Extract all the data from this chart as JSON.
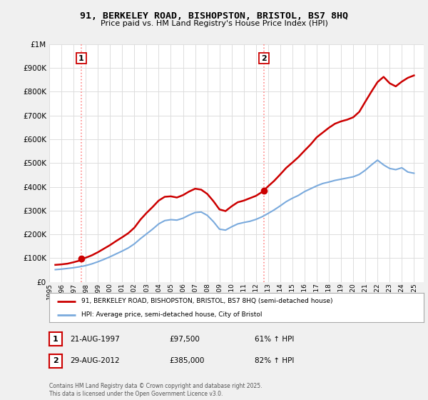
{
  "title_line1": "91, BERKELEY ROAD, BISHOPSTON, BRISTOL, BS7 8HQ",
  "title_line2": "Price paid vs. HM Land Registry's House Price Index (HPI)",
  "ylim": [
    0,
    1000000
  ],
  "yticks": [
    0,
    100000,
    200000,
    300000,
    400000,
    500000,
    600000,
    700000,
    800000,
    900000,
    1000000
  ],
  "ytick_labels": [
    "£0",
    "£100K",
    "£200K",
    "£300K",
    "£400K",
    "£500K",
    "£600K",
    "£700K",
    "£800K",
    "£900K",
    "£1M"
  ],
  "sale1_year": 1997.64,
  "sale1_price": 97500,
  "sale2_year": 2012.66,
  "sale2_price": 385000,
  "sale1_label": "1",
  "sale2_label": "2",
  "vline_color": "#ff8888",
  "red_line_color": "#cc0000",
  "blue_line_color": "#7aaadd",
  "sale_dot_color": "#cc0000",
  "legend_label_red": "91, BERKELEY ROAD, BISHOPSTON, BRISTOL, BS7 8HQ (semi-detached house)",
  "legend_label_blue": "HPI: Average price, semi-detached house, City of Bristol",
  "annotation1_date": "21-AUG-1997",
  "annotation1_price": "£97,500",
  "annotation1_hpi": "61% ↑ HPI",
  "annotation2_date": "29-AUG-2012",
  "annotation2_price": "£385,000",
  "annotation2_hpi": "82% ↑ HPI",
  "footer": "Contains HM Land Registry data © Crown copyright and database right 2025.\nThis data is licensed under the Open Government Licence v3.0.",
  "background_color": "#f0f0f0",
  "plot_bg_color": "#ffffff",
  "grid_color": "#dddddd",
  "red_years": [
    1995.5,
    1996.0,
    1996.5,
    1997.0,
    1997.5,
    1997.64,
    1998.0,
    1998.5,
    1999.0,
    1999.5,
    2000.0,
    2000.5,
    2001.0,
    2001.5,
    2002.0,
    2002.5,
    2003.0,
    2003.5,
    2004.0,
    2004.5,
    2005.0,
    2005.5,
    2006.0,
    2006.5,
    2007.0,
    2007.5,
    2008.0,
    2008.5,
    2009.0,
    2009.5,
    2010.0,
    2010.5,
    2011.0,
    2011.5,
    2012.0,
    2012.5,
    2012.66,
    2013.0,
    2013.5,
    2014.0,
    2014.5,
    2015.0,
    2015.5,
    2016.0,
    2016.5,
    2017.0,
    2017.5,
    2018.0,
    2018.5,
    2019.0,
    2019.5,
    2020.0,
    2020.5,
    2021.0,
    2021.5,
    2022.0,
    2022.5,
    2023.0,
    2023.5,
    2024.0,
    2024.5,
    2025.0
  ],
  "red_vals": [
    72000,
    74000,
    77000,
    83000,
    90000,
    97500,
    102000,
    112000,
    125000,
    140000,
    155000,
    172000,
    188000,
    205000,
    228000,
    262000,
    290000,
    315000,
    342000,
    358000,
    360000,
    355000,
    365000,
    380000,
    392000,
    388000,
    370000,
    340000,
    305000,
    298000,
    318000,
    335000,
    342000,
    352000,
    362000,
    378000,
    385000,
    402000,
    425000,
    452000,
    480000,
    502000,
    525000,
    552000,
    578000,
    608000,
    628000,
    648000,
    665000,
    675000,
    682000,
    692000,
    715000,
    758000,
    800000,
    840000,
    862000,
    835000,
    822000,
    842000,
    858000,
    868000
  ],
  "blue_years": [
    1995.5,
    1996.0,
    1996.5,
    1997.0,
    1997.5,
    1998.0,
    1998.5,
    1999.0,
    1999.5,
    2000.0,
    2000.5,
    2001.0,
    2001.5,
    2002.0,
    2002.5,
    2003.0,
    2003.5,
    2004.0,
    2004.5,
    2005.0,
    2005.5,
    2006.0,
    2006.5,
    2007.0,
    2007.5,
    2008.0,
    2008.5,
    2009.0,
    2009.5,
    2010.0,
    2010.5,
    2011.0,
    2011.5,
    2012.0,
    2012.5,
    2013.0,
    2013.5,
    2014.0,
    2014.5,
    2015.0,
    2015.5,
    2016.0,
    2016.5,
    2017.0,
    2017.5,
    2018.0,
    2018.5,
    2019.0,
    2019.5,
    2020.0,
    2020.5,
    2021.0,
    2021.5,
    2022.0,
    2022.5,
    2023.0,
    2023.5,
    2024.0,
    2024.5,
    2025.0
  ],
  "blue_vals": [
    52000,
    54000,
    57000,
    60000,
    64000,
    69000,
    76000,
    85000,
    95000,
    106000,
    118000,
    130000,
    143000,
    160000,
    182000,
    202000,
    222000,
    244000,
    258000,
    262000,
    260000,
    268000,
    281000,
    292000,
    294000,
    280000,
    254000,
    222000,
    218000,
    232000,
    244000,
    250000,
    255000,
    263000,
    274000,
    288000,
    303000,
    320000,
    338000,
    352000,
    364000,
    380000,
    392000,
    404000,
    414000,
    420000,
    427000,
    432000,
    437000,
    442000,
    452000,
    470000,
    492000,
    512000,
    492000,
    477000,
    472000,
    480000,
    462000,
    457000
  ]
}
